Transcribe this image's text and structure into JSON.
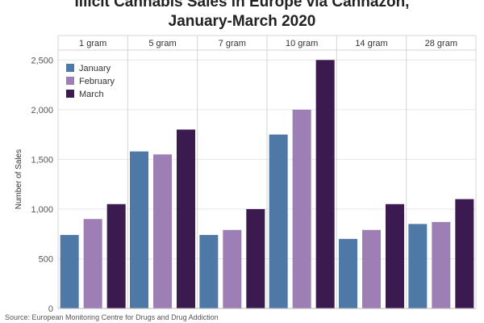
{
  "chart_data": {
    "type": "bar",
    "title_line1": "Illicit Cannabis Sales in Europe via Cannazon,",
    "title_line2": "January-March 2020",
    "ylabel": "Number of Sales",
    "ylim": [
      0,
      2600
    ],
    "yticks": [
      0,
      500,
      1000,
      1500,
      2000,
      2500
    ],
    "ytick_labels": [
      "0",
      "500",
      "1,000",
      "1,500",
      "2,000",
      "2,500"
    ],
    "categories": [
      "1 gram",
      "5 gram",
      "7 gram",
      "10 gram",
      "14 gram",
      "28 gram"
    ],
    "series": [
      {
        "name": "January",
        "color": "#4e79a7",
        "values": [
          740,
          1580,
          740,
          1750,
          700,
          850
        ]
      },
      {
        "name": "February",
        "color": "#9d7eb5",
        "values": [
          900,
          1550,
          790,
          2000,
          790,
          870
        ]
      },
      {
        "name": "March",
        "color": "#3b1a4f",
        "values": [
          1050,
          1800,
          1000,
          2500,
          1050,
          1100
        ]
      }
    ],
    "legend_position": "top-left",
    "grid": true
  },
  "footer": {
    "source": "Source: European Monitoring Centre for Drugs and Drug Addiction"
  }
}
